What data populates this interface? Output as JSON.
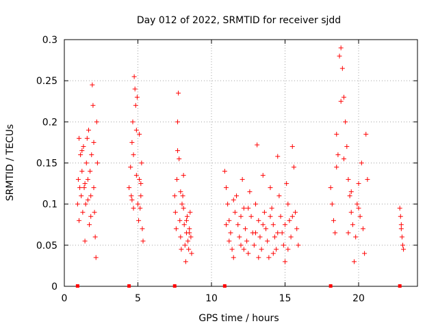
{
  "chart_data": {
    "type": "scatter",
    "title": "Day 012 of 2022, SRMTID for receiver sjdd",
    "xlabel": "GPS time / hours",
    "ylabel": "SRMTID / TECUs",
    "xlim": [
      0,
      24
    ],
    "ylim": [
      0,
      0.3
    ],
    "grid": true,
    "marker_color": "#ff0000",
    "x_ticks": [
      {
        "value": 0,
        "label": "0"
      },
      {
        "value": 5,
        "label": "5"
      },
      {
        "value": 10,
        "label": "10"
      },
      {
        "value": 15,
        "label": "15"
      },
      {
        "value": 20,
        "label": "20"
      }
    ],
    "y_ticks": [
      {
        "value": 0,
        "label": "0"
      },
      {
        "value": 0.05,
        "label": "0.05"
      },
      {
        "value": 0.1,
        "label": "0.1"
      },
      {
        "value": 0.15,
        "label": "0.15"
      },
      {
        "value": 0.2,
        "label": "0.2"
      },
      {
        "value": 0.25,
        "label": "0.25"
      },
      {
        "value": 0.3,
        "label": "0.3"
      }
    ],
    "series": [
      {
        "name": "SRMTID",
        "points": [
          [
            0.9,
            0.1
          ],
          [
            0.95,
            0.13
          ],
          [
            1.0,
            0.08
          ],
          [
            1.05,
            0.12
          ],
          [
            1.1,
            0.16
          ],
          [
            1.15,
            0.11
          ],
          [
            1.2,
            0.14
          ],
          [
            1.25,
            0.09
          ],
          [
            1.3,
            0.17
          ],
          [
            1.35,
            0.12
          ],
          [
            1.4,
            0.055
          ],
          [
            1.45,
            0.1
          ],
          [
            1.5,
            0.15
          ],
          [
            1.55,
            0.18
          ],
          [
            1.6,
            0.13
          ],
          [
            1.65,
            0.19
          ],
          [
            1.7,
            0.075
          ],
          [
            1.75,
            0.14
          ],
          [
            1.8,
            0.11
          ],
          [
            1.85,
            0.16
          ],
          [
            1.9,
            0.245
          ],
          [
            1.95,
            0.22
          ],
          [
            2.0,
            0.12
          ],
          [
            2.05,
            0.09
          ],
          [
            2.1,
            0.06
          ],
          [
            2.15,
            0.035
          ],
          [
            2.2,
            0.2
          ],
          [
            2.25,
            0.15
          ],
          [
            1.0,
            0.18
          ],
          [
            1.2,
            0.165
          ],
          [
            1.4,
            0.125
          ],
          [
            1.6,
            0.105
          ],
          [
            1.8,
            0.085
          ],
          [
            2.0,
            0.175
          ],
          [
            4.4,
            0.12
          ],
          [
            4.5,
            0.145
          ],
          [
            4.55,
            0.11
          ],
          [
            4.6,
            0.175
          ],
          [
            4.65,
            0.2
          ],
          [
            4.7,
            0.16
          ],
          [
            4.75,
            0.255
          ],
          [
            4.8,
            0.24
          ],
          [
            4.85,
            0.22
          ],
          [
            4.9,
            0.19
          ],
          [
            4.95,
            0.23
          ],
          [
            5.0,
            0.1
          ],
          [
            5.05,
            0.08
          ],
          [
            5.1,
            0.13
          ],
          [
            5.15,
            0.095
          ],
          [
            5.2,
            0.11
          ],
          [
            5.25,
            0.15
          ],
          [
            5.3,
            0.07
          ],
          [
            5.35,
            0.055
          ],
          [
            4.7,
            0.095
          ],
          [
            4.9,
            0.135
          ],
          [
            5.1,
            0.185
          ],
          [
            5.2,
            0.125
          ],
          [
            4.6,
            0.105
          ],
          [
            7.5,
            0.11
          ],
          [
            7.55,
            0.09
          ],
          [
            7.6,
            0.07
          ],
          [
            7.65,
            0.13
          ],
          [
            7.7,
            0.2
          ],
          [
            7.75,
            0.235
          ],
          [
            7.8,
            0.155
          ],
          [
            7.85,
            0.08
          ],
          [
            7.9,
            0.06
          ],
          [
            7.95,
            0.045
          ],
          [
            8.0,
            0.1
          ],
          [
            8.05,
            0.11
          ],
          [
            8.1,
            0.135
          ],
          [
            8.15,
            0.075
          ],
          [
            8.2,
            0.05
          ],
          [
            8.25,
            0.03
          ],
          [
            8.3,
            0.065
          ],
          [
            8.35,
            0.085
          ],
          [
            8.4,
            0.055
          ],
          [
            8.45,
            0.045
          ],
          [
            8.5,
            0.07
          ],
          [
            8.55,
            0.09
          ],
          [
            8.6,
            0.06
          ],
          [
            8.65,
            0.04
          ],
          [
            7.7,
            0.165
          ],
          [
            7.9,
            0.115
          ],
          [
            8.1,
            0.095
          ],
          [
            8.3,
            0.08
          ],
          [
            8.5,
            0.065
          ],
          [
            10.9,
            0.14
          ],
          [
            11.0,
            0.12
          ],
          [
            11.1,
            0.1
          ],
          [
            11.2,
            0.08
          ],
          [
            11.3,
            0.065
          ],
          [
            11.4,
            0.045
          ],
          [
            11.5,
            0.035
          ],
          [
            11.6,
            0.09
          ],
          [
            11.7,
            0.11
          ],
          [
            11.8,
            0.075
          ],
          [
            11.9,
            0.06
          ],
          [
            12.0,
            0.05
          ],
          [
            12.1,
            0.13
          ],
          [
            12.2,
            0.095
          ],
          [
            12.3,
            0.07
          ],
          [
            12.4,
            0.055
          ],
          [
            12.5,
            0.04
          ],
          [
            12.6,
            0.115
          ],
          [
            12.7,
            0.085
          ],
          [
            12.8,
            0.065
          ],
          [
            12.9,
            0.05
          ],
          [
            13.0,
            0.1
          ],
          [
            13.1,
            0.172
          ],
          [
            13.2,
            0.08
          ],
          [
            13.3,
            0.06
          ],
          [
            13.4,
            0.045
          ],
          [
            13.5,
            0.135
          ],
          [
            13.6,
            0.09
          ],
          [
            13.7,
            0.07
          ],
          [
            13.8,
            0.055
          ],
          [
            13.9,
            0.035
          ],
          [
            14.0,
            0.12
          ],
          [
            14.1,
            0.095
          ],
          [
            14.2,
            0.075
          ],
          [
            14.3,
            0.06
          ],
          [
            14.4,
            0.045
          ],
          [
            14.5,
            0.158
          ],
          [
            14.6,
            0.11
          ],
          [
            14.7,
            0.085
          ],
          [
            14.8,
            0.065
          ],
          [
            14.9,
            0.05
          ],
          [
            15.0,
            0.03
          ],
          [
            15.1,
            0.125
          ],
          [
            15.2,
            0.1
          ],
          [
            15.3,
            0.08
          ],
          [
            15.4,
            0.06
          ],
          [
            15.5,
            0.17
          ],
          [
            15.6,
            0.145
          ],
          [
            15.7,
            0.09
          ],
          [
            15.8,
            0.07
          ],
          [
            15.9,
            0.05
          ],
          [
            11.0,
            0.075
          ],
          [
            11.5,
            0.105
          ],
          [
            12.0,
            0.085
          ],
          [
            12.5,
            0.095
          ],
          [
            13.0,
            0.065
          ],
          [
            13.5,
            0.075
          ],
          [
            14.0,
            0.085
          ],
          [
            14.5,
            0.065
          ],
          [
            15.0,
            0.075
          ],
          [
            15.5,
            0.085
          ],
          [
            11.2,
            0.055
          ],
          [
            12.2,
            0.045
          ],
          [
            13.2,
            0.035
          ],
          [
            14.2,
            0.04
          ],
          [
            15.2,
            0.045
          ],
          [
            18.1,
            0.12
          ],
          [
            18.2,
            0.1
          ],
          [
            18.3,
            0.08
          ],
          [
            18.4,
            0.065
          ],
          [
            18.5,
            0.145
          ],
          [
            18.6,
            0.16
          ],
          [
            18.7,
            0.28
          ],
          [
            18.8,
            0.29
          ],
          [
            18.9,
            0.265
          ],
          [
            19.0,
            0.23
          ],
          [
            19.1,
            0.2
          ],
          [
            19.2,
            0.17
          ],
          [
            19.3,
            0.13
          ],
          [
            19.4,
            0.11
          ],
          [
            19.5,
            0.09
          ],
          [
            19.6,
            0.075
          ],
          [
            19.7,
            0.03
          ],
          [
            19.8,
            0.06
          ],
          [
            19.9,
            0.1
          ],
          [
            20.0,
            0.125
          ],
          [
            20.1,
            0.085
          ],
          [
            20.2,
            0.15
          ],
          [
            20.3,
            0.07
          ],
          [
            20.4,
            0.04
          ],
          [
            20.5,
            0.185
          ],
          [
            20.6,
            0.13
          ],
          [
            18.5,
            0.185
          ],
          [
            19.0,
            0.155
          ],
          [
            19.5,
            0.115
          ],
          [
            20.0,
            0.095
          ],
          [
            18.8,
            0.225
          ],
          [
            19.3,
            0.065
          ],
          [
            22.8,
            0.095
          ],
          [
            22.85,
            0.085
          ],
          [
            22.9,
            0.075
          ],
          [
            22.95,
            0.06
          ],
          [
            23.0,
            0.05
          ],
          [
            23.05,
            0.045
          ],
          [
            22.9,
            0.07
          ]
        ]
      }
    ],
    "gap_markers_x": [
      0.9,
      4.4,
      7.5,
      10.9,
      18.1,
      22.8
    ]
  }
}
